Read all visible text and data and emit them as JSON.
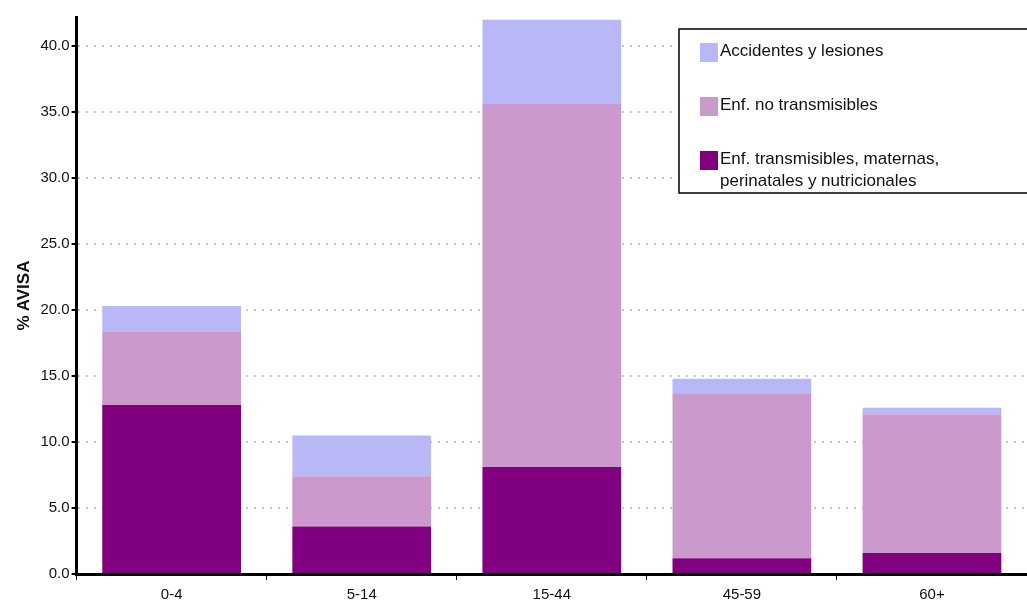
{
  "chart_data": {
    "type": "bar",
    "ylabel": "% AVISA",
    "categories": [
      "0-4",
      "5-14",
      "15-44",
      "45-59",
      "60+"
    ],
    "stacked": true,
    "legend": "top right",
    "grid": "y",
    "ylim": [
      0,
      42.2
    ],
    "yticks": [
      {
        "value": 0,
        "label": "0.0"
      },
      {
        "value": 5,
        "label": "5.0"
      },
      {
        "value": 10,
        "label": "10.0"
      },
      {
        "value": 15,
        "label": "15.0"
      },
      {
        "value": 20,
        "label": "20.0"
      },
      {
        "value": 25,
        "label": "25.0"
      },
      {
        "value": 30,
        "label": "30.0"
      },
      {
        "value": 35,
        "label": "35.0"
      },
      {
        "value": 40,
        "label": "40.0"
      }
    ],
    "series": [
      {
        "name": "Enf. transmisibles, maternas, perinatales y nutricionales",
        "color": "#800080",
        "values": [
          12.8,
          3.6,
          8.1,
          1.2,
          1.6
        ]
      },
      {
        "name": "Enf. no transmisibles",
        "color": "#cc99cc",
        "values": [
          5.6,
          3.8,
          27.5,
          12.5,
          10.5
        ]
      },
      {
        "name": "Accidentes y lesiones",
        "color": "#b8b8f8",
        "values": [
          1.9,
          3.1,
          6.4,
          1.1,
          0.5
        ]
      }
    ]
  }
}
